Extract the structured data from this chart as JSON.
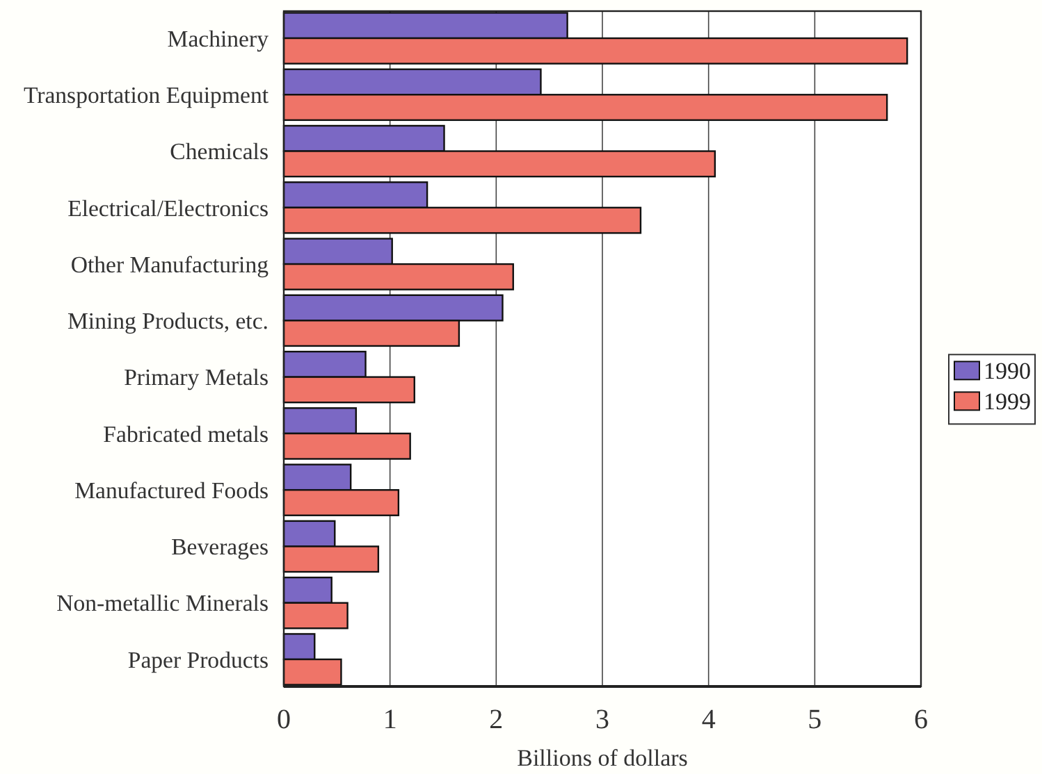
{
  "chart_data": {
    "type": "bar",
    "orientation": "horizontal",
    "categories": [
      "Machinery",
      "Transportation Equipment",
      "Chemicals",
      "Electrical/Electronics",
      "Other Manufacturing",
      "Mining Products, etc.",
      "Primary Metals",
      "Fabricated metals",
      "Manufactured Foods",
      "Beverages",
      "Non-metallic Minerals",
      "Paper Products"
    ],
    "series": [
      {
        "name": "1990",
        "color": "#7b68c4",
        "values": [
          2.67,
          2.42,
          1.51,
          1.35,
          1.02,
          2.06,
          0.77,
          0.68,
          0.63,
          0.48,
          0.45,
          0.29
        ]
      },
      {
        "name": "1999",
        "color": "#ef7468",
        "values": [
          5.87,
          5.68,
          4.06,
          3.36,
          2.16,
          1.65,
          1.23,
          1.19,
          1.08,
          0.89,
          0.6,
          0.54
        ]
      }
    ],
    "xlabel": "Billions of dollars",
    "xlim": [
      0,
      6
    ],
    "xticks": [
      0,
      1,
      2,
      3,
      4,
      5,
      6
    ],
    "grid": "x",
    "legend": "right"
  }
}
